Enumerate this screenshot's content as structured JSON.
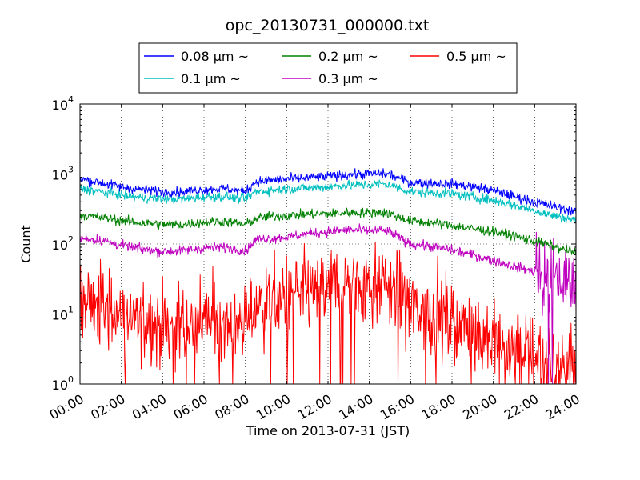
{
  "chart_data": {
    "type": "line",
    "title": "opc_20130731_000000.txt",
    "xlabel": "Time on 2013-07-31 (JST)",
    "ylabel": "Count",
    "yscale": "log",
    "ylim": [
      1,
      10000
    ],
    "xlim": [
      "00:00",
      "24:00"
    ],
    "x_tick_labels": [
      "00:00",
      "02:00",
      "04:00",
      "06:00",
      "08:00",
      "10:00",
      "12:00",
      "14:00",
      "16:00",
      "18:00",
      "20:00",
      "22:00",
      "24:00"
    ],
    "y_ticks": [
      {
        "base": "10",
        "exp": "0"
      },
      {
        "base": "10",
        "exp": "1"
      },
      {
        "base": "10",
        "exp": "2"
      },
      {
        "base": "10",
        "exp": "3"
      },
      {
        "base": "10",
        "exp": "4"
      }
    ],
    "grid": true,
    "legend_position": "top-center",
    "x": [
      "00:00",
      "01:00",
      "02:00",
      "03:00",
      "04:00",
      "05:00",
      "06:00",
      "07:00",
      "08:00",
      "08:30",
      "09:00",
      "10:00",
      "11:00",
      "12:00",
      "13:00",
      "14:00",
      "14:30",
      "15:00",
      "15:30",
      "16:00",
      "17:00",
      "18:00",
      "19:00",
      "20:00",
      "21:00",
      "22:00",
      "23:00",
      "24:00"
    ],
    "series": [
      {
        "name": "0.08 μm ~",
        "color": "#0000ff",
        "values": [
          850,
          750,
          650,
          600,
          560,
          560,
          600,
          620,
          560,
          780,
          800,
          850,
          880,
          920,
          980,
          1000,
          1010,
          980,
          850,
          760,
          740,
          720,
          660,
          580,
          480,
          400,
          340,
          290
        ]
      },
      {
        "name": "0.1 μm ~",
        "color": "#00bfbf",
        "values": [
          620,
          560,
          500,
          460,
          440,
          440,
          470,
          480,
          440,
          560,
          580,
          610,
          630,
          660,
          690,
          700,
          720,
          700,
          620,
          560,
          540,
          520,
          470,
          420,
          360,
          300,
          250,
          220
        ]
      },
      {
        "name": "0.2 μm ~",
        "color": "#008000",
        "values": [
          260,
          240,
          215,
          200,
          190,
          190,
          205,
          210,
          190,
          230,
          245,
          255,
          265,
          270,
          280,
          280,
          285,
          270,
          240,
          215,
          200,
          185,
          165,
          150,
          130,
          110,
          90,
          75
        ]
      },
      {
        "name": "0.3 μm ~",
        "color": "#bf00bf",
        "values": [
          120,
          115,
          95,
          85,
          78,
          80,
          88,
          90,
          80,
          115,
          120,
          125,
          140,
          150,
          160,
          155,
          158,
          150,
          120,
          100,
          92,
          82,
          70,
          58,
          48,
          40,
          32,
          26
        ]
      },
      {
        "name": "0.5 μm ~",
        "color": "#ff0000",
        "values": [
          16,
          14,
          9,
          8,
          7,
          7,
          8,
          8,
          7,
          14,
          15,
          17,
          20,
          24,
          28,
          28,
          28,
          26,
          16,
          12,
          10,
          8,
          6,
          4,
          3,
          3,
          2,
          2
        ]
      }
    ]
  }
}
